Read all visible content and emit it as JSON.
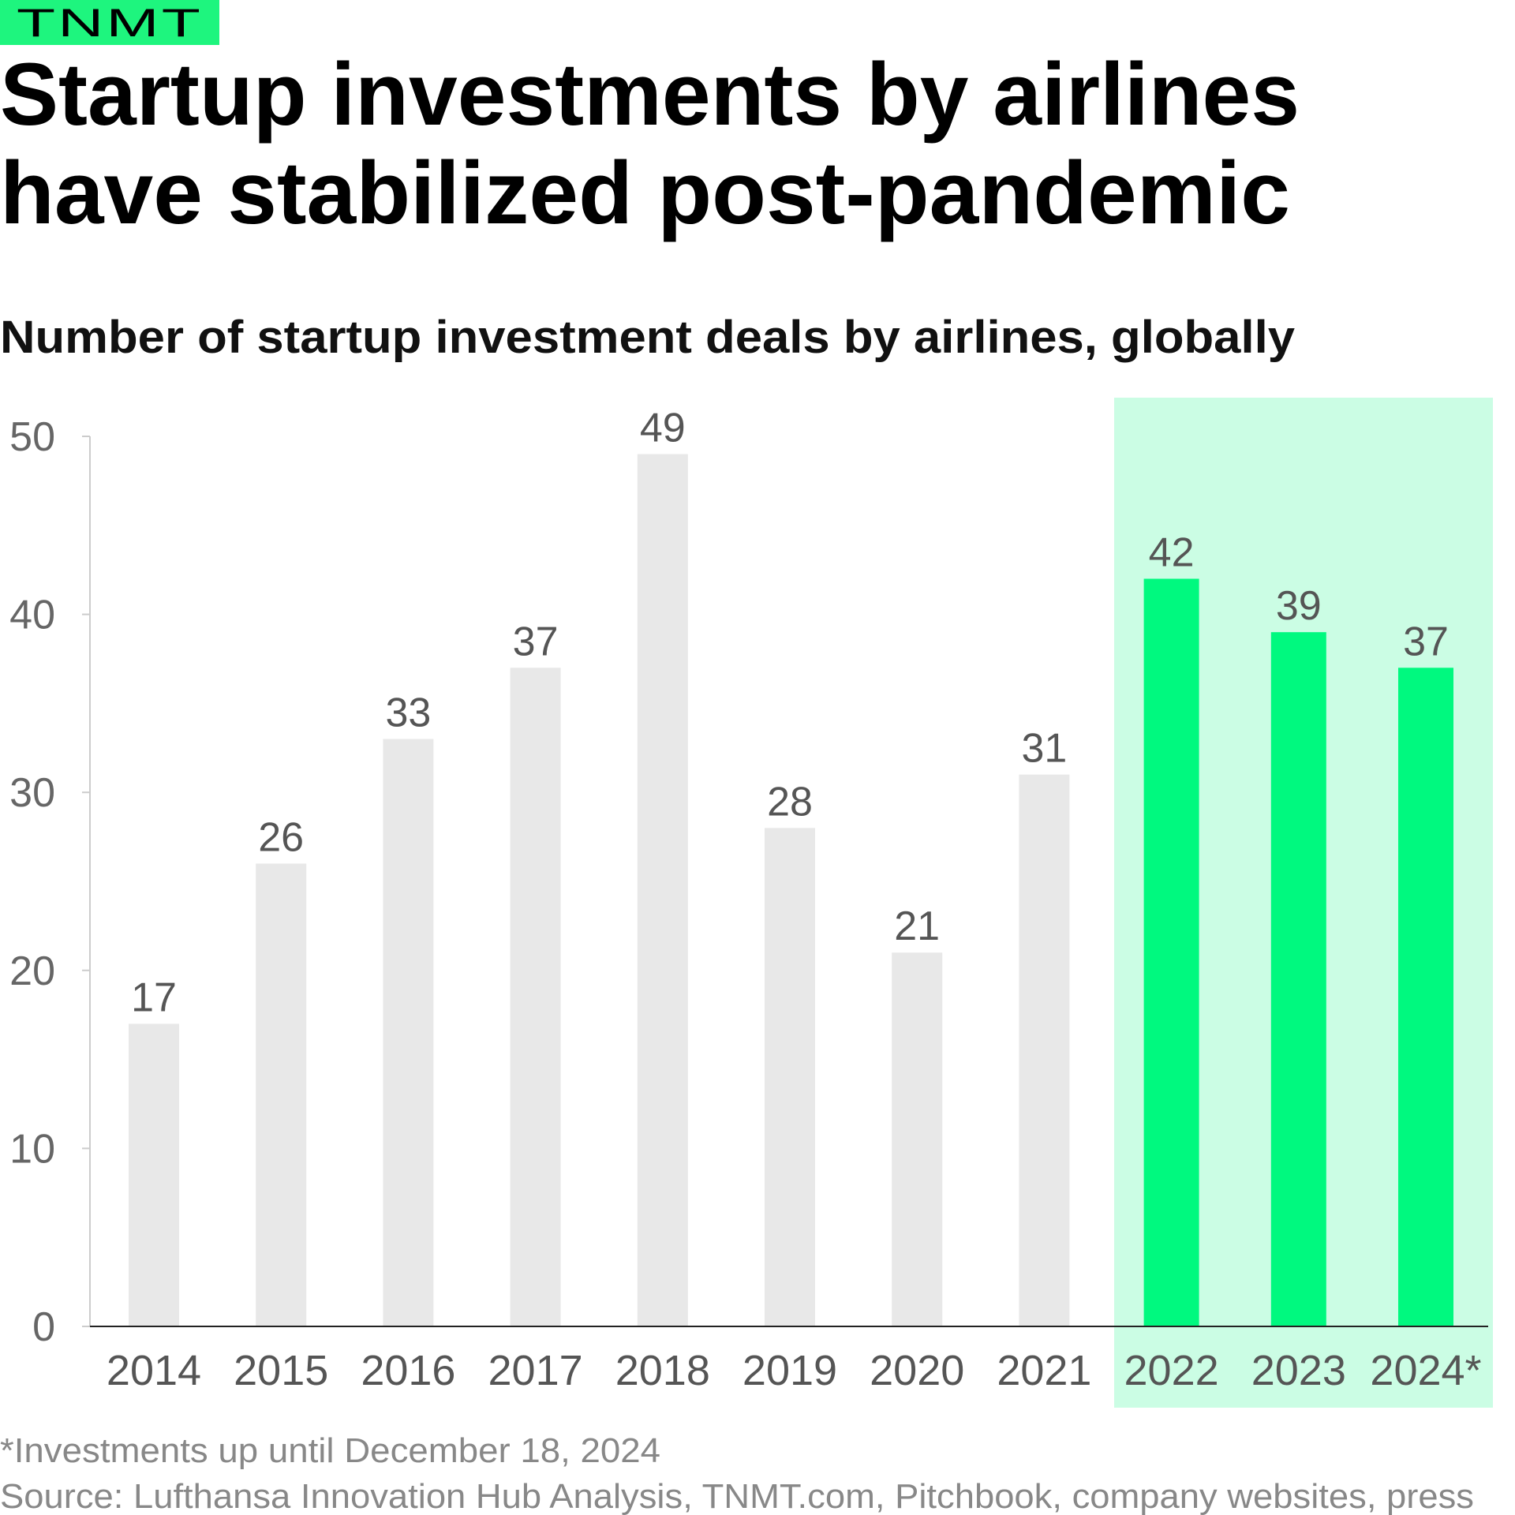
{
  "brand": {
    "logo_text": "TNMT",
    "color": "#1ef57e"
  },
  "header": {
    "title_lines": [
      "Startup investments by airlines",
      "have stabilized post-pandemic"
    ],
    "subtitle": "Number of startup investment deals by airlines, globally"
  },
  "chart_data": {
    "type": "bar",
    "title": "Startup investments by airlines have stabilized post-pandemic",
    "subtitle": "Number of startup investment deals by airlines, globally",
    "categories": [
      "2014",
      "2015",
      "2016",
      "2017",
      "2018",
      "2019",
      "2020",
      "2021",
      "2022",
      "2023",
      "2024*"
    ],
    "values": [
      17,
      26,
      33,
      37,
      49,
      28,
      21,
      31,
      42,
      39,
      37
    ],
    "highlighted": [
      "2022",
      "2023",
      "2024*"
    ],
    "ylim": [
      0,
      50
    ],
    "yticks": [
      0,
      10,
      20,
      30,
      40,
      50
    ],
    "xlabel": "",
    "ylabel": "",
    "grid": false,
    "data_labels": true,
    "colors": {
      "bar": "#e8e8e8",
      "highlight_bar": "#00f97f",
      "highlight_background": "#cbfde4"
    }
  },
  "footer": {
    "note": "*Investments up until December 18, 2024",
    "source": "Source: Lufthansa Innovation Hub Analysis, TNMT.com, Pitchbook, company websites, press"
  }
}
